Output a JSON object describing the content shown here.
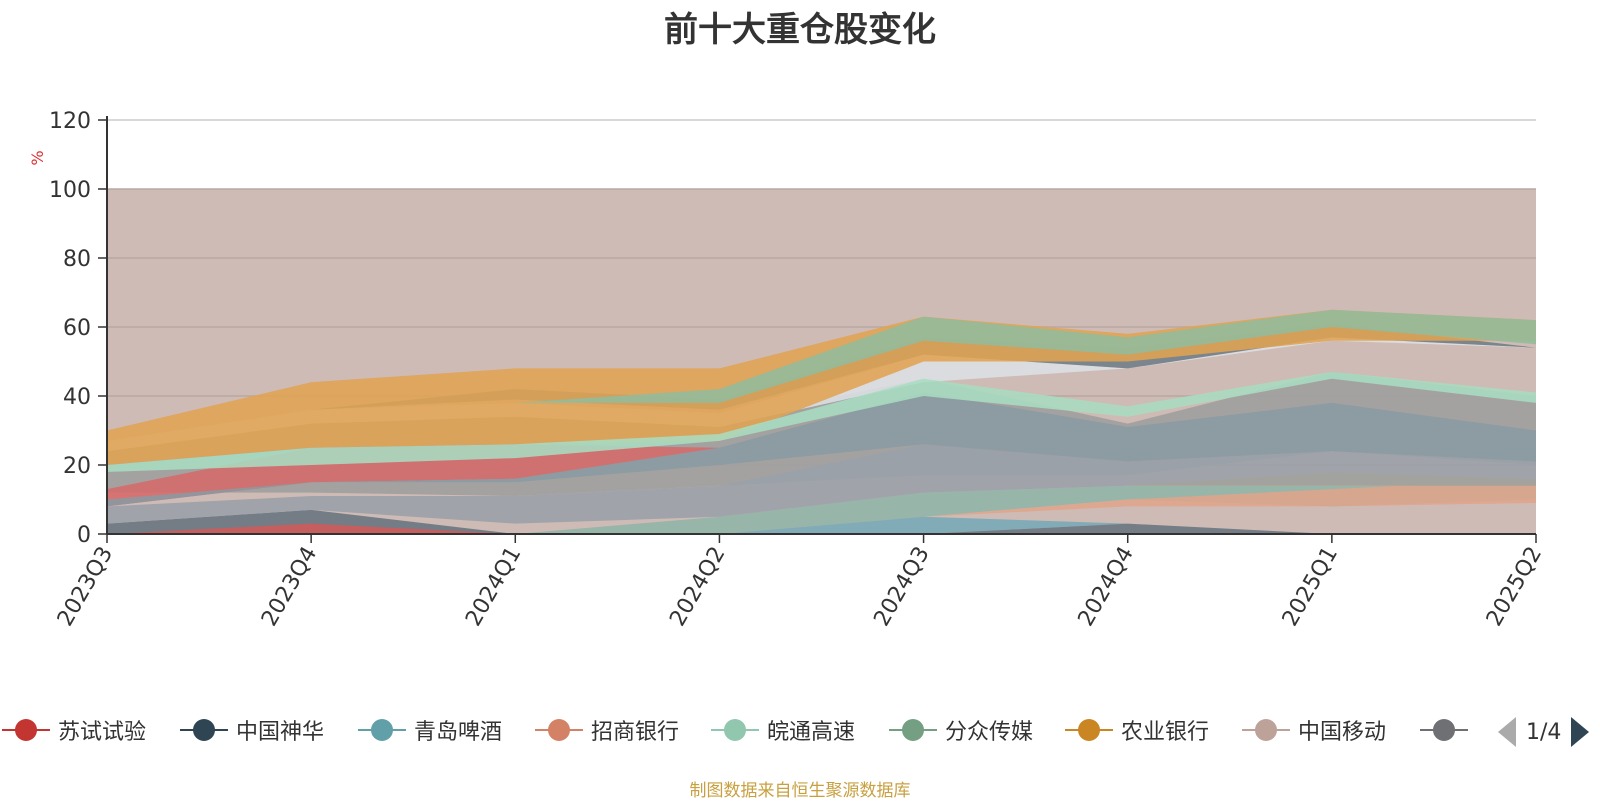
{
  "chart_data": {
    "type": "area",
    "title": "前十大重仓股变化",
    "ylabel": "%",
    "ylim": [
      0,
      120
    ],
    "yticks": [
      0,
      20,
      40,
      60,
      80,
      100,
      120
    ],
    "categories": [
      "2023Q3",
      "2023Q4",
      "2024Q1",
      "2024Q2",
      "2024Q3",
      "2024Q4",
      "2025Q1",
      "2025Q2"
    ],
    "background_band": {
      "from": 0,
      "to": 100,
      "color": "#cfbbb5"
    },
    "areas": [
      {
        "color": "#9e9e9e",
        "lower": [
          12,
          12,
          11,
          14,
          17,
          17,
          24,
          20
        ],
        "upper": [
          24,
          32,
          34,
          33,
          45,
          32,
          47,
          40
        ]
      },
      {
        "color": "#d66a6a",
        "lower": [
          8,
          15,
          16,
          25,
          37,
          31,
          40,
          30
        ],
        "upper": [
          13,
          25,
          26,
          25,
          37,
          31,
          40,
          30
        ]
      },
      {
        "color": "#8a9aa3",
        "lower": [
          8,
          15,
          15,
          20,
          26,
          21,
          24,
          21
        ],
        "upper": [
          10,
          15,
          16,
          25,
          41,
          31,
          38,
          30
        ]
      },
      {
        "color": "#dce0e6",
        "lower": [
          24,
          32,
          34,
          31,
          44,
          48,
          56,
          54
        ],
        "upper": [
          27,
          36,
          38,
          35,
          52,
          48,
          57,
          54
        ]
      },
      {
        "color": "#6f7d89",
        "lower": [
          27,
          36,
          39,
          36,
          52,
          48,
          57,
          54
        ],
        "upper": [
          27,
          36,
          42,
          39,
          57,
          54,
          61,
          54
        ]
      },
      {
        "color": "#e0a352",
        "lower": [
          20,
          25,
          26,
          27,
          50,
          50,
          56,
          56
        ],
        "upper": [
          30,
          44,
          48,
          48,
          63,
          58,
          65,
          62
        ]
      },
      {
        "color": "#92bc9c",
        "lower": [
          38,
          38,
          38,
          38,
          56,
          52,
          60,
          55
        ],
        "upper": [
          38,
          38,
          38,
          42,
          63,
          57,
          65,
          62
        ]
      },
      {
        "color": "#a8dcc0",
        "lower": [
          18,
          20,
          22,
          27,
          40,
          34,
          45,
          38
        ],
        "upper": [
          20,
          25,
          26,
          29,
          45,
          37,
          47,
          41
        ]
      },
      {
        "color": "#8fb4a6",
        "lower": [
          0,
          0,
          0,
          0,
          5,
          10,
          8,
          10
        ],
        "upper": [
          0,
          0,
          0,
          5,
          12,
          14,
          14,
          14
        ]
      },
      {
        "color": "#e0a48b",
        "lower": [
          0,
          0,
          0,
          0,
          5,
          8,
          8,
          9
        ],
        "upper": [
          0,
          0,
          0,
          0,
          5,
          10,
          13,
          16
        ]
      },
      {
        "color": "#e0b050",
        "lower": [
          0,
          0,
          0,
          0,
          0,
          14,
          14,
          14
        ],
        "upper": [
          0,
          0,
          0,
          0,
          0,
          14,
          18,
          16
        ]
      },
      {
        "color": "#78a9b8",
        "lower": [
          0,
          0,
          0,
          0,
          0,
          3,
          0,
          0
        ],
        "upper": [
          0,
          0,
          0,
          0,
          5,
          3,
          0,
          0
        ]
      },
      {
        "color": "#68747f",
        "lower": [
          0,
          0,
          0,
          0,
          0,
          0,
          0,
          0
        ],
        "upper": [
          3,
          7,
          0,
          0,
          0,
          3,
          0,
          0
        ]
      },
      {
        "color": "#d05a5a",
        "lower": [
          0,
          0,
          0,
          0,
          0,
          0,
          0,
          0
        ],
        "upper": [
          0,
          3,
          0,
          0,
          0,
          0,
          0,
          0
        ]
      },
      {
        "color": "#9aa0a8",
        "lower": [
          3,
          7,
          3,
          5,
          12,
          14,
          14,
          14
        ],
        "upper": [
          8,
          11,
          11,
          14,
          26,
          21,
          24,
          21
        ]
      }
    ],
    "legend": [
      {
        "name": "苏试试验",
        "color": "#c23531"
      },
      {
        "name": "中国神华",
        "color": "#2f4554"
      },
      {
        "name": "青岛啤酒",
        "color": "#61a0a8"
      },
      {
        "name": "招商银行",
        "color": "#d48265"
      },
      {
        "name": "皖通高速",
        "color": "#91c7ae"
      },
      {
        "name": "分众传媒",
        "color": "#749f83"
      },
      {
        "name": "农业银行",
        "color": "#ca8622"
      },
      {
        "name": "中国移动",
        "color": "#bda29a"
      },
      {
        "name": "",
        "color": "#6e7074"
      }
    ],
    "legend_page": "1/4",
    "source_note": "制图数据来自恒生聚源数据库"
  }
}
